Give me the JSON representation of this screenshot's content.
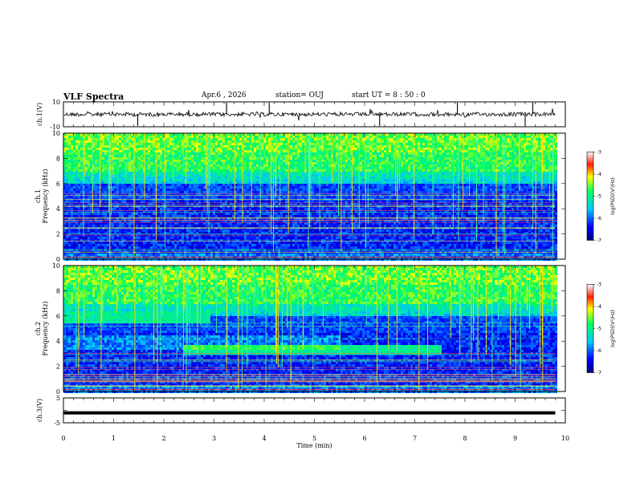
{
  "header": {
    "title": "VLF Spectra",
    "date": "Apr.6 , 2026",
    "station": "station= OUJ",
    "start": "start UT = 8 : 50 : 0"
  },
  "chart_data": [
    {
      "type": "line",
      "name": "ch1-waveform",
      "ylabel": "ch.1(V)",
      "ylim": [
        -10,
        10
      ],
      "yticks": [
        10,
        -10
      ],
      "xlim": [
        0,
        10
      ],
      "baseline": 0,
      "x_end": 9.8
    },
    {
      "type": "heatmap",
      "name": "ch1-spectrogram",
      "ylabel_top": "ch.1",
      "ylabel": "Frequency (kHz)",
      "ylim": [
        0,
        10
      ],
      "yticks": [
        0,
        2,
        4,
        6,
        8,
        10
      ],
      "xlim": [
        0,
        10
      ],
      "x_end": 9.8,
      "upper_band_khz": [
        7.0,
        10.0
      ],
      "colorbar": {
        "label": "log(PSD)(V²/Hz)",
        "ticks": [
          -3,
          -4,
          -5,
          -6,
          -7
        ],
        "range": [
          -7,
          -3
        ]
      }
    },
    {
      "type": "heatmap",
      "name": "ch2-spectrogram",
      "ylabel_top": "ch.2",
      "ylabel": "Frequency (kHz)",
      "ylim": [
        0,
        10
      ],
      "yticks": [
        0,
        2,
        4,
        6,
        8,
        10
      ],
      "xlim": [
        0,
        10
      ],
      "x_end": 9.8,
      "upper_band_khz": [
        7.0,
        10.0
      ],
      "bands": [
        {
          "t_start": 0.0,
          "t_end": 2.9,
          "f_center_khz": 6.0
        },
        {
          "t_start": 2.4,
          "t_end": 7.5,
          "f_center_khz": 3.4
        }
      ],
      "colorbar": {
        "label": "log(PSD)(V²/Hz)",
        "ticks": [
          -3,
          -4,
          -5,
          -6,
          -7
        ],
        "range": [
          -7,
          -3
        ]
      }
    },
    {
      "type": "line",
      "name": "ch3-waveform",
      "ylabel": "ch.3(V)",
      "ylim": [
        -5,
        5
      ],
      "yticks": [
        5,
        0,
        -5
      ],
      "xlim": [
        0,
        10
      ],
      "value": -1.0,
      "x_end": 9.8,
      "xlabel": "Time (min)",
      "xticks": [
        0,
        1,
        2,
        3,
        4,
        5,
        6,
        7,
        8,
        9,
        10
      ]
    }
  ]
}
